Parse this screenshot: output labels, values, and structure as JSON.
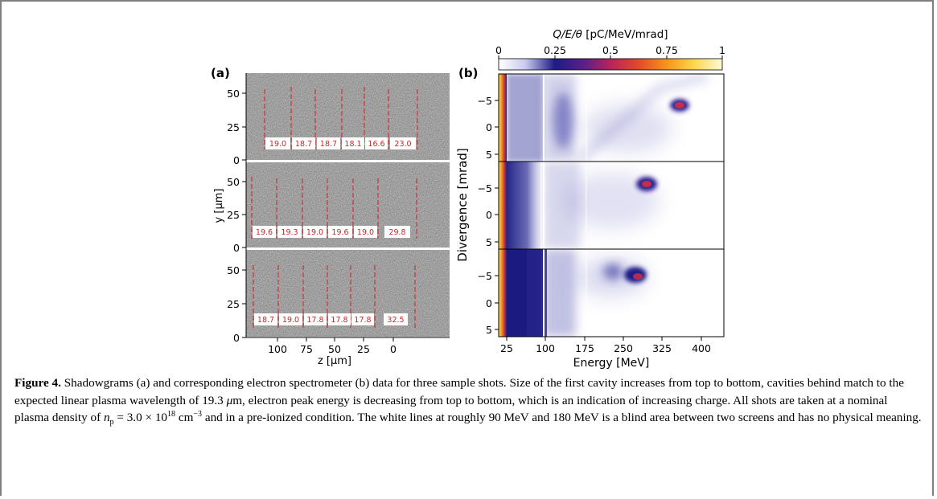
{
  "figure": {
    "panel_a": {
      "label": "(a)",
      "ylabel": "y [μm]",
      "xlabel": "z [μm]",
      "yticks": [
        "50",
        "25",
        "0"
      ],
      "xticks": [
        "100",
        "75",
        "50",
        "25",
        "0"
      ],
      "shots": [
        {
          "values": [
            "19.0",
            "18.7",
            "18.7",
            "18.1",
            "16.6",
            "23.0"
          ]
        },
        {
          "values": [
            "19.6",
            "19.3",
            "19.0",
            "19.6",
            "19.0",
            "29.8"
          ]
        },
        {
          "values": [
            "18.7",
            "19.0",
            "17.8",
            "17.8",
            "17.8",
            "32.5"
          ]
        }
      ]
    },
    "panel_b": {
      "label": "(b)",
      "xlabel": "Energy [MeV]",
      "ylabel": "Divergence [mrad]",
      "xticks": [
        "25",
        "100",
        "175",
        "250",
        "325",
        "400"
      ],
      "yticks": [
        "−5",
        "0",
        "5"
      ],
      "colorbar": {
        "label_parts": [
          "Q/E/θ",
          " [pC/MeV/mrad]"
        ],
        "ticks": [
          "0",
          "0.25",
          "0.5",
          "0.75",
          "1"
        ]
      },
      "blind_lines_mev": [
        90,
        180
      ],
      "peaks": [
        {
          "energy_mev": 365,
          "divergence_mrad": -3.5
        },
        {
          "energy_mev": 300,
          "divergence_mrad": -4.0
        },
        {
          "energy_mev": 270,
          "divergence_mrad": -5.5
        }
      ]
    }
  },
  "caption": {
    "label": "Figure 4.",
    "text_1": " Shadowgrams (a) and corresponding electron spectrometer (b) data for three sample shots. Size of the first cavity increases from top to bottom, cavities behind match to the expected linear plasma wavelength of 19.3 ",
    "mu": "μ",
    "text_2": "m, electron peak energy is decreasing from top to bottom, which is an indication of increasing charge. All shots are taken at a nominal plasma density of ",
    "n": "n",
    "sub_p": "p",
    "eq_text": " = 3.0 × 10",
    "sup_18": "18",
    "unit": " cm",
    "sup_neg3": "−3",
    "text_3": " and in a pre-ionized condition. The white lines at roughly 90 MeV and 180 MeV is a blind area between two screens and has no physical meaning."
  }
}
